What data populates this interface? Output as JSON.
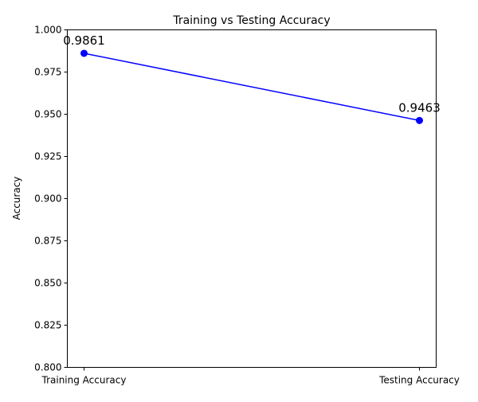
{
  "chart_data": {
    "type": "line",
    "title": "Training vs Testing Accuracy",
    "xlabel": "",
    "ylabel": "Accuracy",
    "categories": [
      "Training Accuracy",
      "Testing Accuracy"
    ],
    "series": [
      {
        "values": [
          0.9861,
          0.9463
        ],
        "color": "#0000ff",
        "marker": "circle",
        "data_labels": [
          "0.9861",
          "0.9463"
        ]
      }
    ],
    "ylim": [
      0.8,
      1.0
    ],
    "yticks": [
      0.8,
      0.825,
      0.85,
      0.875,
      0.9,
      0.925,
      0.95,
      0.975,
      1.0
    ],
    "ytick_labels": [
      "0.800",
      "0.825",
      "0.850",
      "0.875",
      "0.900",
      "0.925",
      "0.950",
      "0.975",
      "1.000"
    ],
    "grid": false,
    "legend": false
  }
}
